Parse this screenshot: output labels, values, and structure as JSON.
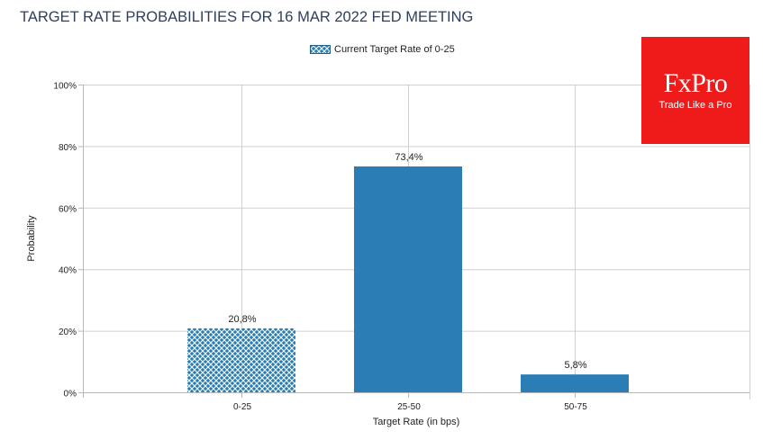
{
  "chart_data": {
    "type": "bar",
    "title": "TARGET RATE PROBABILITIES FOR 16 MAR 2022 FED MEETING",
    "xlabel": "Target Rate (in bps)",
    "ylabel": "Probability",
    "categories": [
      "0-25",
      "25-50",
      "50-75"
    ],
    "values": [
      20.8,
      73.4,
      5.8
    ],
    "data_labels": [
      "20,8%",
      "73,4%",
      "5,8%"
    ],
    "highlighted": [
      true,
      false,
      false
    ],
    "ylim": [
      0,
      100
    ],
    "yticks": [
      0,
      20,
      40,
      60,
      80,
      100
    ],
    "ytick_labels": [
      "0%",
      "20%",
      "40%",
      "60%",
      "80%",
      "100%"
    ],
    "grid": true,
    "legend": {
      "position": "top-center",
      "entries": [
        "Current Target Rate of 0-25"
      ]
    },
    "colors": {
      "bar": "#2a7db5",
      "hatch_bg": "#ffffff",
      "grid": "#d0d0d0",
      "axis": "#b8b8b8",
      "title": "#2f3e5c"
    }
  },
  "logo": {
    "brand": "FxPro",
    "tagline": "Trade Like a Pro",
    "color": "#ef1a1a"
  }
}
